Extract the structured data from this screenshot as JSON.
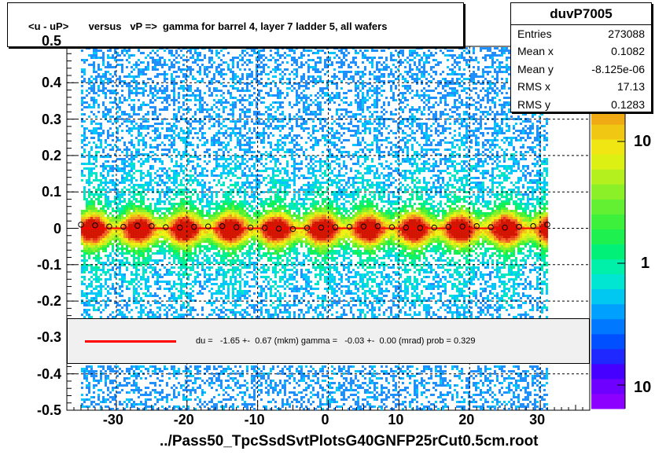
{
  "chart_data": {
    "type": "heatmap",
    "title": "<u - uP>       versus   vP =>  gamma for barrel 4, layer 7 ladder 5, all wafers",
    "xlabel": "../Pass50_TpcSsdSvtPlotsG40GNFP25rCut0.5cm.root",
    "ylabel": "",
    "xlim": [
      -37,
      37
    ],
    "ylim": [
      -0.5,
      0.5
    ],
    "x_tick_labels": [
      "-30",
      "-20",
      "-10",
      "0",
      "10",
      "20",
      "30"
    ],
    "x_tick_values": [
      -30,
      -20,
      -10,
      0,
      10,
      20,
      30
    ],
    "y_tick_labels": [
      "-0.5",
      "-0.4",
      "-0.3",
      "-0.2",
      "-0.1",
      "0",
      "0.1",
      "0.2",
      "0.3",
      "0.4",
      "0.5"
    ],
    "y_tick_values": [
      -0.5,
      -0.4,
      -0.3,
      -0.2,
      -0.1,
      0,
      0.1,
      0.2,
      0.3,
      0.4,
      0.5
    ],
    "z_tick_labels": [
      "10",
      "1",
      "10"
    ],
    "z_scale": "log",
    "data_x_range": [
      -35,
      31
    ],
    "profile": {
      "x": [
        -35,
        -33,
        -31,
        -29,
        -27,
        -25,
        -23,
        -21,
        -19,
        -17,
        -15,
        -13,
        -11,
        -9,
        -7,
        -5,
        -3,
        -1,
        1,
        3,
        5,
        7,
        9,
        11,
        13,
        15,
        17,
        19,
        21,
        23,
        25,
        27,
        29,
        31
      ],
      "y": [
        0.01,
        0.008,
        0.005,
        0.004,
        0.007,
        0.006,
        0.003,
        0.002,
        0.004,
        0.005,
        0.006,
        0.003,
        0.002,
        0.001,
        -0.001,
        -0.002,
        0.001,
        0.002,
        0.003,
        0.004,
        0.005,
        0.006,
        0.003,
        0.002,
        0.001,
        0.002,
        0.004,
        0.005,
        0.006,
        0.003,
        0.002,
        0.004,
        0.006,
        0.01
      ]
    },
    "fit_line_y": 0.0
  },
  "stats": {
    "name": "duvP7005",
    "rows": [
      {
        "key": "Entries",
        "value": "273088"
      },
      {
        "key": "Mean x",
        "value": "0.1082"
      },
      {
        "key": "Mean y",
        "value": "-8.125e-06"
      },
      {
        "key": "RMS x",
        "value": "17.13"
      },
      {
        "key": "RMS y",
        "value": "0.1283"
      }
    ]
  },
  "fit_text": "du =   -1.65 +-  0.67 (mkm) gamma =   -0.03 +-  0.00 (mrad) prob = 0.329",
  "colors": {
    "fit_line": "#ff0000",
    "background": "#ffffff",
    "legend_fill": "#f0f0f0"
  }
}
